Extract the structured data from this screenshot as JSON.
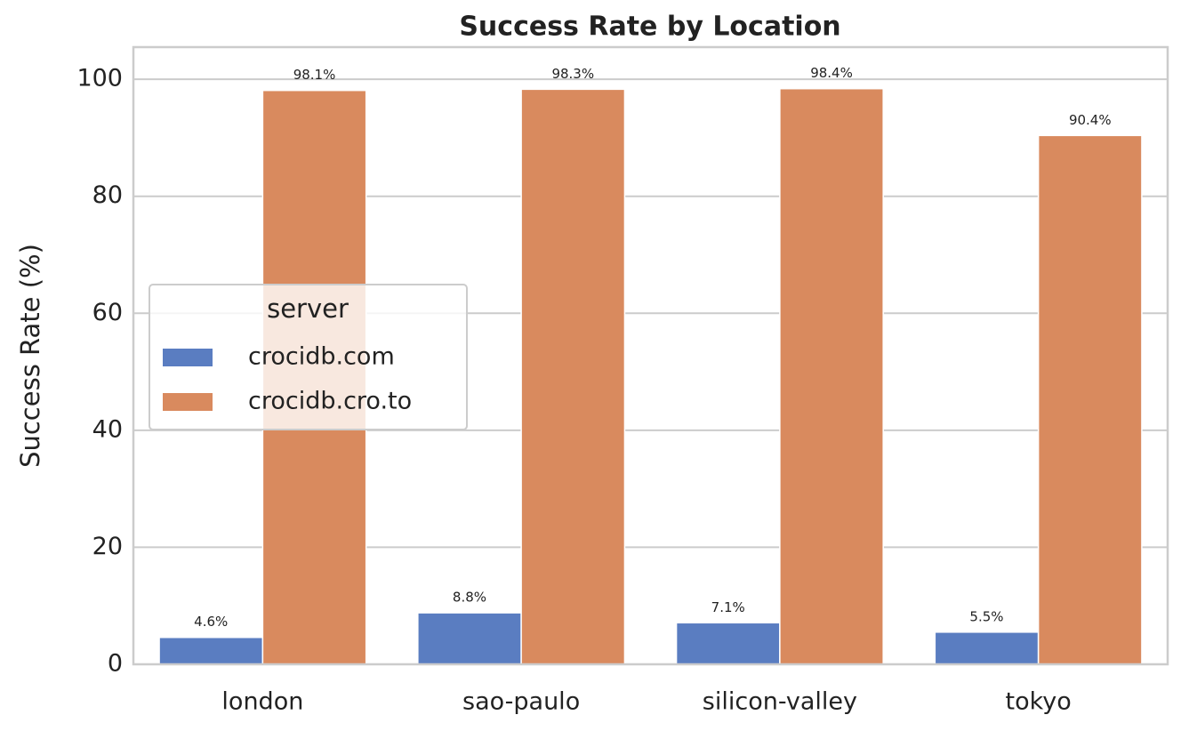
{
  "chart_data": {
    "type": "bar",
    "title": "Success Rate by Location",
    "y_label": "Success Rate (%)",
    "categories": [
      "london",
      "sao-paulo",
      "silicon-valley",
      "tokyo"
    ],
    "series": [
      {
        "name": "crocidb.com",
        "color": "#5a7dc1",
        "values": [
          4.6,
          8.8,
          7.1,
          5.5
        ],
        "value_labels": [
          "4.6%",
          "8.8%",
          "7.1%",
          "5.5%"
        ]
      },
      {
        "name": "crocidb.cro.to",
        "color": "#d98a5e",
        "values": [
          98.1,
          98.3,
          98.4,
          90.4
        ],
        "value_labels": [
          "98.1%",
          "98.3%",
          "98.4%",
          "90.4%"
        ]
      }
    ],
    "legend_title": "server",
    "legend_position": "center left",
    "ylim": [
      0,
      105.5
    ],
    "yticks": [
      0,
      20,
      40,
      60,
      80,
      100
    ],
    "grid": true
  }
}
